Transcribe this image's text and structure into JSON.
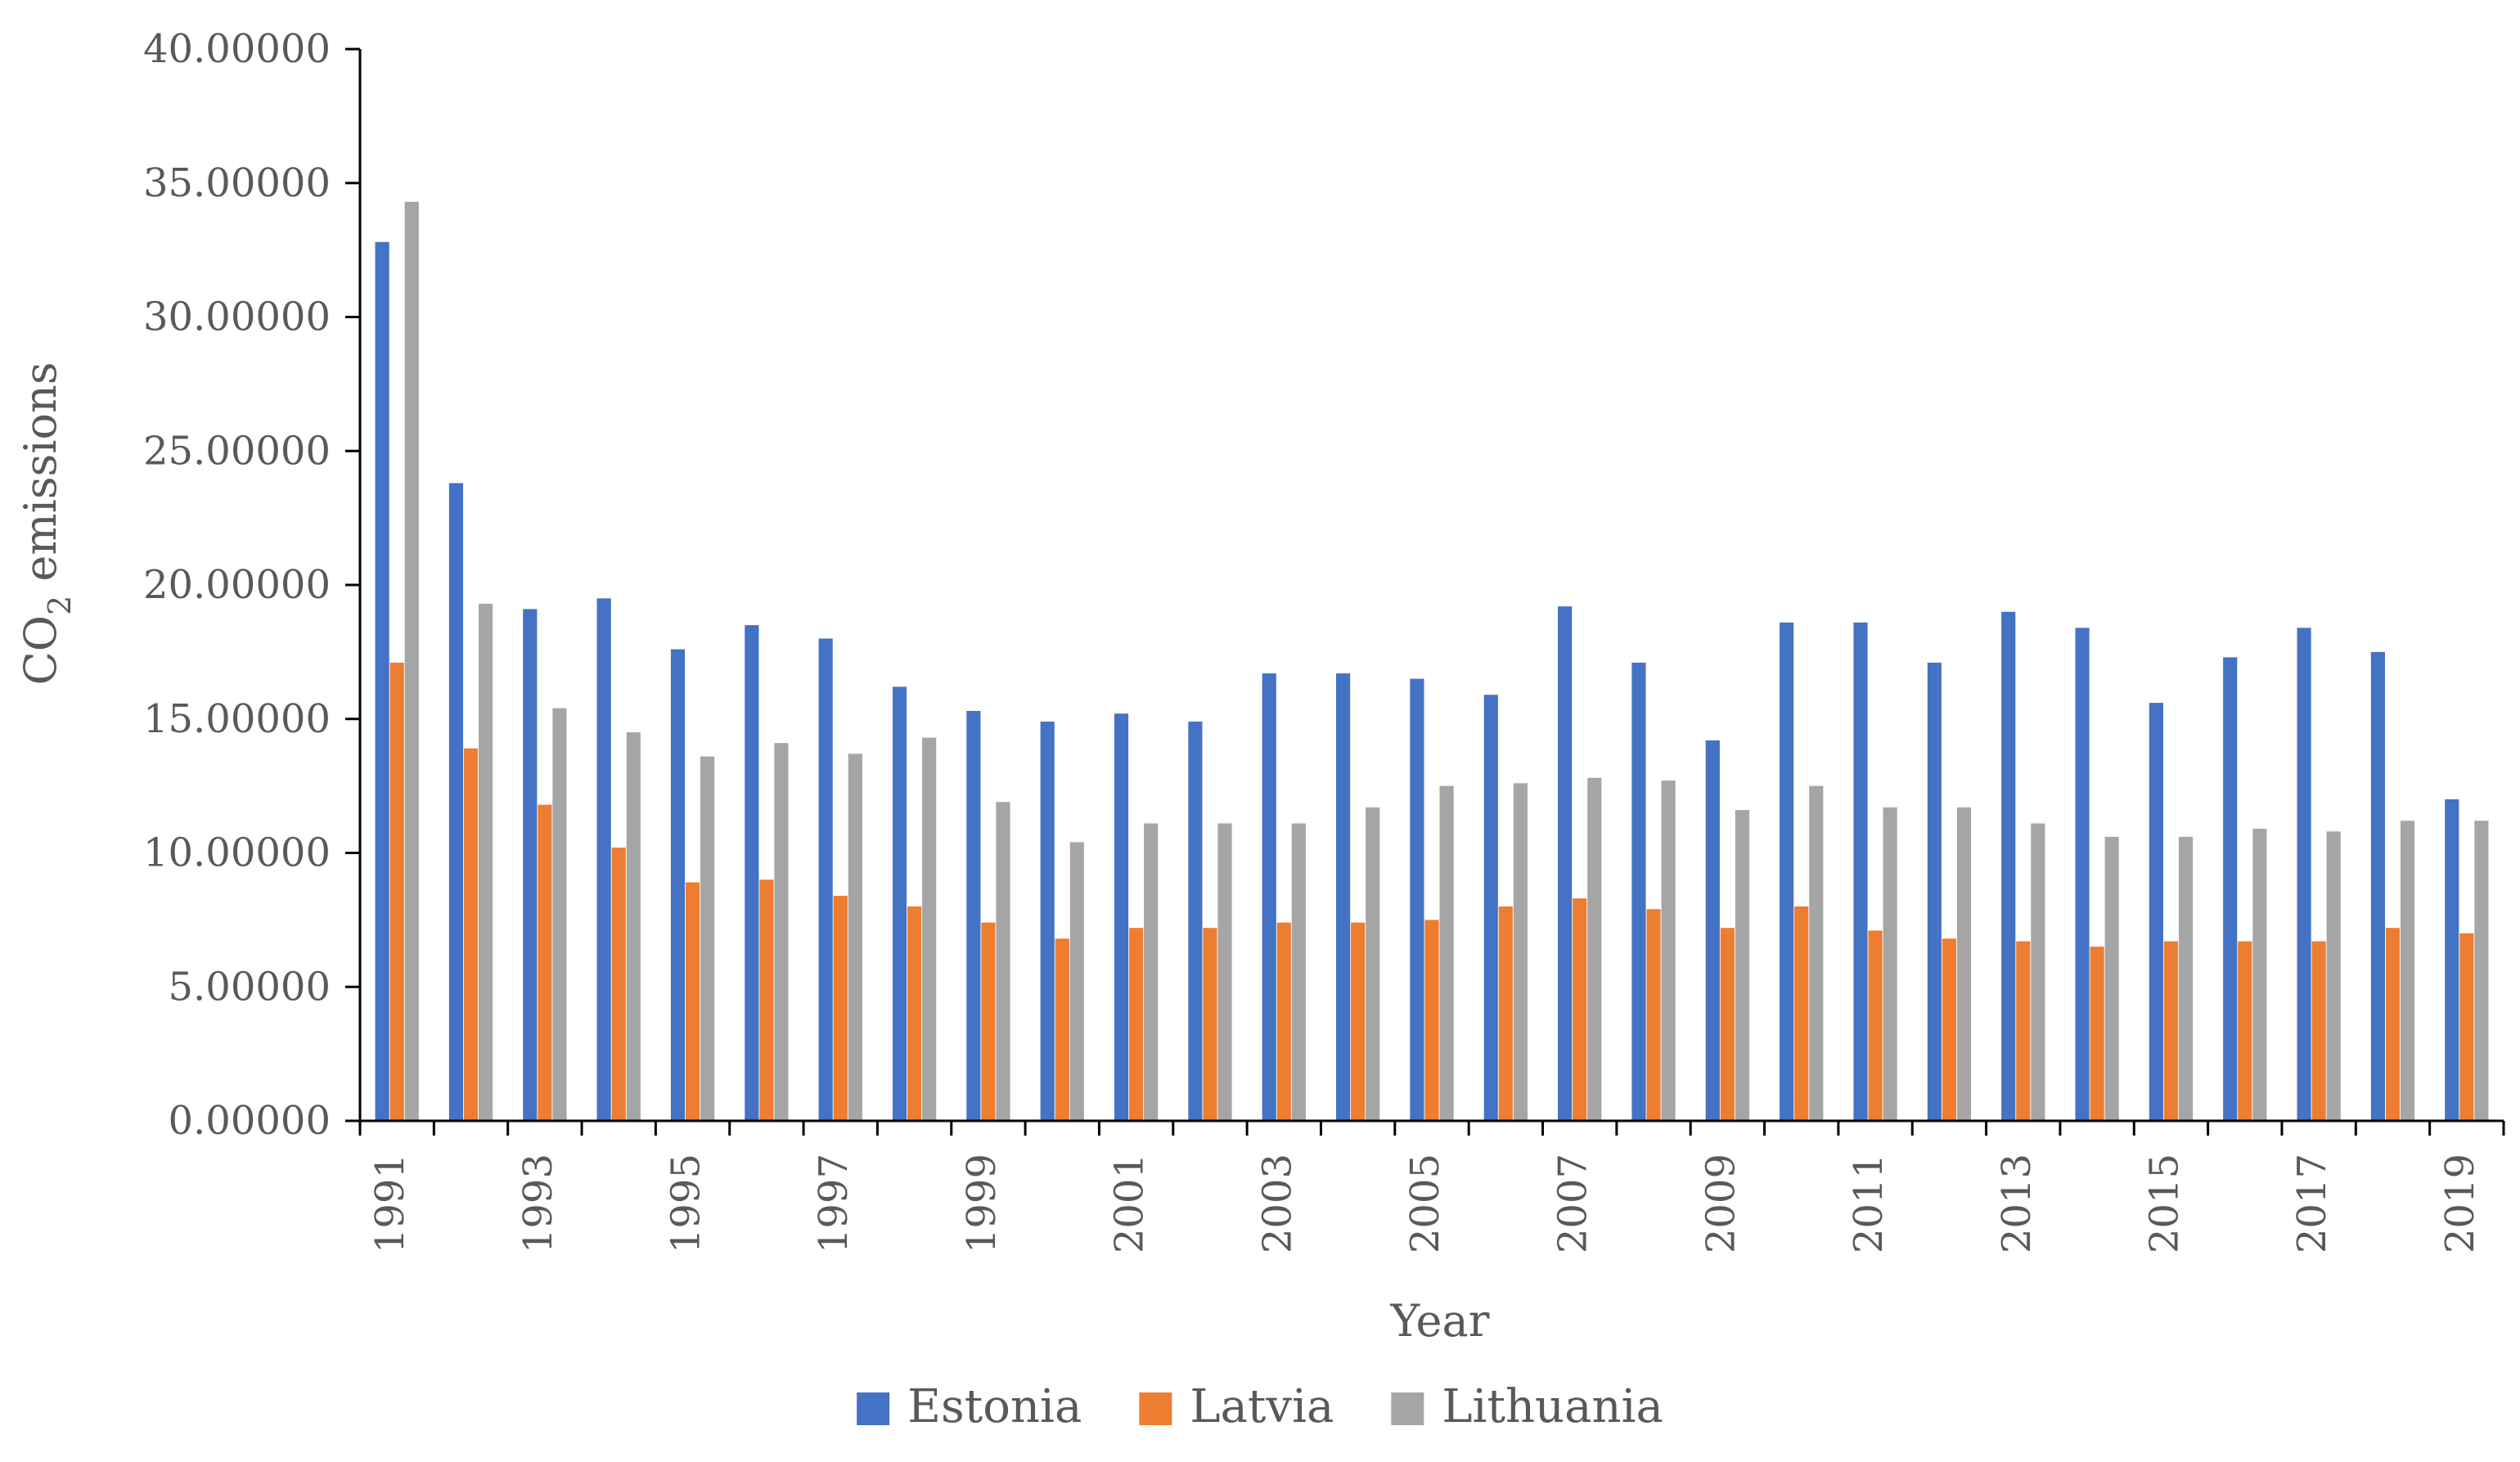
{
  "chart_data": {
    "type": "bar",
    "title": "",
    "xlabel": "Year",
    "ylabel_main": "CO",
    "ylabel_subscript": "2",
    "ylabel_suffix": " emissions",
    "ylim": [
      0,
      40
    ],
    "yticks": [
      0,
      5,
      10,
      15,
      20,
      25,
      30,
      35,
      40
    ],
    "ytick_labels": [
      "0.00000",
      "5.00000",
      "10.00000",
      "15.00000",
      "20.00000",
      "25.00000",
      "30.00000",
      "35.00000",
      "40.00000"
    ],
    "categories": [
      "1991",
      "1992",
      "1993",
      "1994",
      "1995",
      "1996",
      "1997",
      "1998",
      "1999",
      "2000",
      "2001",
      "2002",
      "2003",
      "2004",
      "2005",
      "2006",
      "2007",
      "2008",
      "2009",
      "2010",
      "2011",
      "2012",
      "2013",
      "2014",
      "2015",
      "2016",
      "2017",
      "2018",
      "2019"
    ],
    "xtick_labels": [
      "1991",
      "",
      "1993",
      "",
      "1995",
      "",
      "1997",
      "",
      "1999",
      "",
      "2001",
      "",
      "2003",
      "",
      "2005",
      "",
      "2007",
      "",
      "2009",
      "",
      "2011",
      "",
      "2013",
      "",
      "2015",
      "",
      "2017",
      "",
      "2019"
    ],
    "series": [
      {
        "name": "Estonia",
        "color": "#4472C4",
        "values": [
          32.8,
          23.8,
          19.1,
          19.5,
          17.6,
          18.5,
          18.0,
          16.2,
          15.3,
          14.9,
          15.2,
          14.9,
          16.7,
          16.7,
          16.5,
          15.9,
          19.2,
          17.1,
          14.2,
          18.6,
          18.6,
          17.1,
          19.0,
          18.4,
          15.6,
          17.3,
          18.4,
          17.5,
          12.0
        ]
      },
      {
        "name": "Latvia",
        "color": "#ED7D31",
        "values": [
          17.1,
          13.9,
          11.8,
          10.2,
          8.9,
          9.0,
          8.4,
          8.0,
          7.4,
          6.8,
          7.2,
          7.2,
          7.4,
          7.4,
          7.5,
          8.0,
          8.3,
          7.9,
          7.2,
          8.0,
          7.1,
          6.8,
          6.7,
          6.5,
          6.7,
          6.7,
          6.7,
          7.2,
          7.0
        ]
      },
      {
        "name": "Lithuania",
        "color": "#A5A5A5",
        "values": [
          34.3,
          19.3,
          15.4,
          14.5,
          13.6,
          14.1,
          13.7,
          14.3,
          11.9,
          10.4,
          11.1,
          11.1,
          11.1,
          11.7,
          12.5,
          12.6,
          12.8,
          12.7,
          11.6,
          12.5,
          11.7,
          11.7,
          11.1,
          10.6,
          10.6,
          10.9,
          10.8,
          11.2,
          11.2
        ]
      }
    ],
    "legend_position": "bottom-center",
    "grid": false
  }
}
